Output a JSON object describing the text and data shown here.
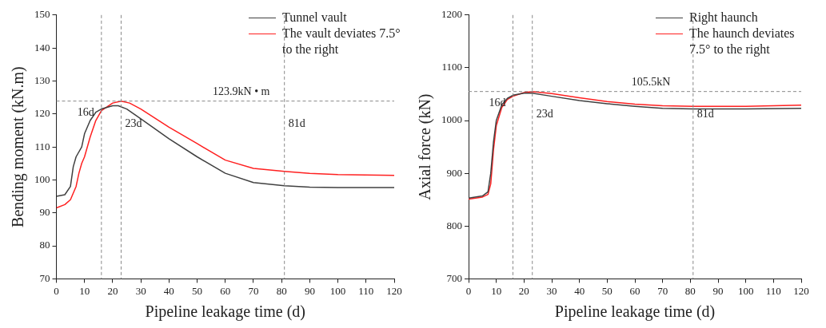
{
  "chart_data": [
    {
      "type": "line",
      "xlabel": "Pipeline leakage time (d)",
      "ylabel": "Bending moment (kN.m)",
      "x": [
        0,
        3,
        5,
        6,
        7,
        9,
        10,
        12,
        14,
        16,
        20,
        22,
        25,
        30,
        40,
        50,
        60,
        70,
        81,
        90,
        100,
        120
      ],
      "series": [
        {
          "name": "Tunnel vault",
          "color": "#404040",
          "values": [
            95,
            95.5,
            98,
            104,
            107,
            110,
            114,
            118,
            120.5,
            121.5,
            122.5,
            122.5,
            121.5,
            118.5,
            112.5,
            107,
            102,
            99.2,
            98.2,
            97.8,
            97.7,
            97.7
          ]
        },
        {
          "name": "The vault deviates 7.5° to the right",
          "color": "#ff2020",
          "x": [
            0,
            3,
            5,
            7,
            8,
            9,
            10,
            12,
            14,
            16,
            20,
            23,
            26,
            30,
            40,
            50,
            60,
            70,
            81,
            90,
            100,
            120
          ],
          "values": [
            91.5,
            92.5,
            94,
            98,
            102,
            105,
            107,
            113,
            118,
            121,
            123.3,
            123.9,
            123.3,
            121.5,
            116,
            111,
            106,
            103.5,
            102.6,
            102,
            101.6,
            101.4
          ]
        }
      ],
      "xlim": [
        0,
        120
      ],
      "xticks": [
        0,
        10,
        20,
        30,
        40,
        50,
        60,
        70,
        80,
        90,
        100,
        110,
        120
      ],
      "ylim": [
        70,
        150
      ],
      "yticks": [
        70,
        80,
        90,
        100,
        110,
        120,
        130,
        140,
        150
      ],
      "ref_lines": [
        {
          "axis": "x",
          "value": 16,
          "label": "16d",
          "line_style": "dashed"
        },
        {
          "axis": "x",
          "value": 23,
          "label": "23d",
          "line_style": "dashed"
        },
        {
          "axis": "x",
          "value": 81,
          "label": "81d",
          "line_style": "dashed"
        },
        {
          "axis": "y",
          "value": 123.9,
          "label": "123.9kN • m",
          "line_style": "dashed"
        }
      ],
      "legend": "top right",
      "grid": false,
      "marker": "none"
    },
    {
      "type": "line",
      "xlabel": "Pipeline leakage time (d)",
      "ylabel": "Axial force (kN)",
      "x": [
        0,
        5,
        7,
        8,
        9,
        10,
        12,
        14,
        16,
        20,
        23,
        30,
        40,
        50,
        60,
        70,
        81,
        100,
        120
      ],
      "series": [
        {
          "name": "Right haunch",
          "color": "#404040",
          "values": [
            853,
            857,
            865,
            900,
            960,
            1000,
            1030,
            1042,
            1048,
            1052,
            1052,
            1046,
            1038,
            1032,
            1027,
            1023,
            1022,
            1022,
            1023
          ]
        },
        {
          "name": "The haunch deviates 7.5° to the right",
          "color": "#ff2020",
          "values": [
            851,
            855,
            860,
            880,
            945,
            990,
            1025,
            1040,
            1046,
            1053,
            1055,
            1051,
            1043,
            1036,
            1031,
            1028,
            1027,
            1027,
            1029
          ]
        }
      ],
      "xlim": [
        0,
        120
      ],
      "xticks": [
        0,
        10,
        20,
        30,
        40,
        50,
        60,
        70,
        80,
        90,
        100,
        110,
        120
      ],
      "ylim": [
        700,
        1200
      ],
      "yticks": [
        700,
        800,
        900,
        1000,
        1100,
        1200
      ],
      "ref_lines": [
        {
          "axis": "x",
          "value": 16,
          "label": "16d",
          "line_style": "dashed"
        },
        {
          "axis": "x",
          "value": 23,
          "label": "23d",
          "line_style": "dashed"
        },
        {
          "axis": "x",
          "value": 81,
          "label": "81d",
          "line_style": "dashed"
        },
        {
          "axis": "y",
          "value": 1055,
          "label": "105.5kN",
          "line_style": "dashed"
        }
      ],
      "legend": "top right",
      "grid": false,
      "marker": "none"
    }
  ]
}
